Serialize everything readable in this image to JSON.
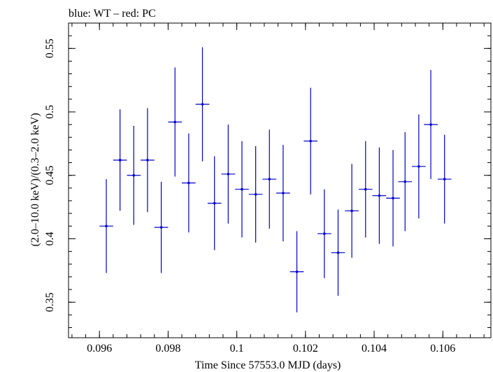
{
  "header": {
    "title": "blue: WT – red: PC"
  },
  "chart_data": {
    "type": "scatter",
    "title": "blue: WT – red: PC",
    "xlabel": "Time Since 57553.0 MJD (days)",
    "ylabel": "(2.0–10.0 keV)/(0.3–2.0 keV)",
    "xlim": [
      0.0951,
      0.1074
    ],
    "ylim": [
      0.322,
      0.57
    ],
    "x_ticks": [
      {
        "value": 0.096,
        "label": "0.096"
      },
      {
        "value": 0.098,
        "label": "0.098"
      },
      {
        "value": 0.1,
        "label": "0.1"
      },
      {
        "value": 0.102,
        "label": "0.102"
      },
      {
        "value": 0.104,
        "label": "0.104"
      },
      {
        "value": 0.106,
        "label": "0.106"
      }
    ],
    "y_ticks": [
      {
        "value": 0.35,
        "label": "0.35"
      },
      {
        "value": 0.4,
        "label": "0.4"
      },
      {
        "value": 0.45,
        "label": "0.45"
      },
      {
        "value": 0.5,
        "label": "0.5"
      },
      {
        "value": 0.55,
        "label": "0.55"
      }
    ],
    "grid": false,
    "series": [
      {
        "name": "WT",
        "color": "#0000cc",
        "points": [
          {
            "x": 0.0962,
            "xerr": 0.0002,
            "y": 0.41,
            "yerr": 0.037
          },
          {
            "x": 0.0966,
            "xerr": 0.0002,
            "y": 0.462,
            "yerr": 0.04
          },
          {
            "x": 0.097,
            "xerr": 0.0002,
            "y": 0.45,
            "yerr": 0.039
          },
          {
            "x": 0.0974,
            "xerr": 0.0002,
            "y": 0.462,
            "yerr": 0.041
          },
          {
            "x": 0.0978,
            "xerr": 0.0002,
            "y": 0.409,
            "yerr": 0.036
          },
          {
            "x": 0.0982,
            "xerr": 0.0002,
            "y": 0.492,
            "yerr": 0.043
          },
          {
            "x": 0.0986,
            "xerr": 0.0002,
            "y": 0.444,
            "yerr": 0.039
          },
          {
            "x": 0.099,
            "xerr": 0.0002,
            "y": 0.506,
            "yerr": 0.045
          },
          {
            "x": 0.09935,
            "xerr": 0.0002,
            "y": 0.428,
            "yerr": 0.037
          },
          {
            "x": 0.09975,
            "xerr": 0.0002,
            "y": 0.451,
            "yerr": 0.039
          },
          {
            "x": 0.10015,
            "xerr": 0.0002,
            "y": 0.439,
            "yerr": 0.038
          },
          {
            "x": 0.10055,
            "xerr": 0.0002,
            "y": 0.435,
            "yerr": 0.038
          },
          {
            "x": 0.10095,
            "xerr": 0.0002,
            "y": 0.447,
            "yerr": 0.039
          },
          {
            "x": 0.10135,
            "xerr": 0.0002,
            "y": 0.436,
            "yerr": 0.038
          },
          {
            "x": 0.10175,
            "xerr": 0.0002,
            "y": 0.374,
            "yerr": 0.032
          },
          {
            "x": 0.10215,
            "xerr": 0.0002,
            "y": 0.477,
            "yerr": 0.042
          },
          {
            "x": 0.10255,
            "xerr": 0.0002,
            "y": 0.404,
            "yerr": 0.035
          },
          {
            "x": 0.10295,
            "xerr": 0.0002,
            "y": 0.389,
            "yerr": 0.034
          },
          {
            "x": 0.10335,
            "xerr": 0.0002,
            "y": 0.422,
            "yerr": 0.037
          },
          {
            "x": 0.10375,
            "xerr": 0.0002,
            "y": 0.439,
            "yerr": 0.038
          },
          {
            "x": 0.10415,
            "xerr": 0.0002,
            "y": 0.434,
            "yerr": 0.038
          },
          {
            "x": 0.10455,
            "xerr": 0.0002,
            "y": 0.432,
            "yerr": 0.038
          },
          {
            "x": 0.1049,
            "xerr": 0.0002,
            "y": 0.445,
            "yerr": 0.039
          },
          {
            "x": 0.1053,
            "xerr": 0.0002,
            "y": 0.457,
            "yerr": 0.041
          },
          {
            "x": 0.10565,
            "xerr": 0.0002,
            "y": 0.49,
            "yerr": 0.043
          },
          {
            "x": 0.10605,
            "xerr": 0.0002,
            "y": 0.447,
            "yerr": 0.035
          }
        ]
      }
    ]
  }
}
